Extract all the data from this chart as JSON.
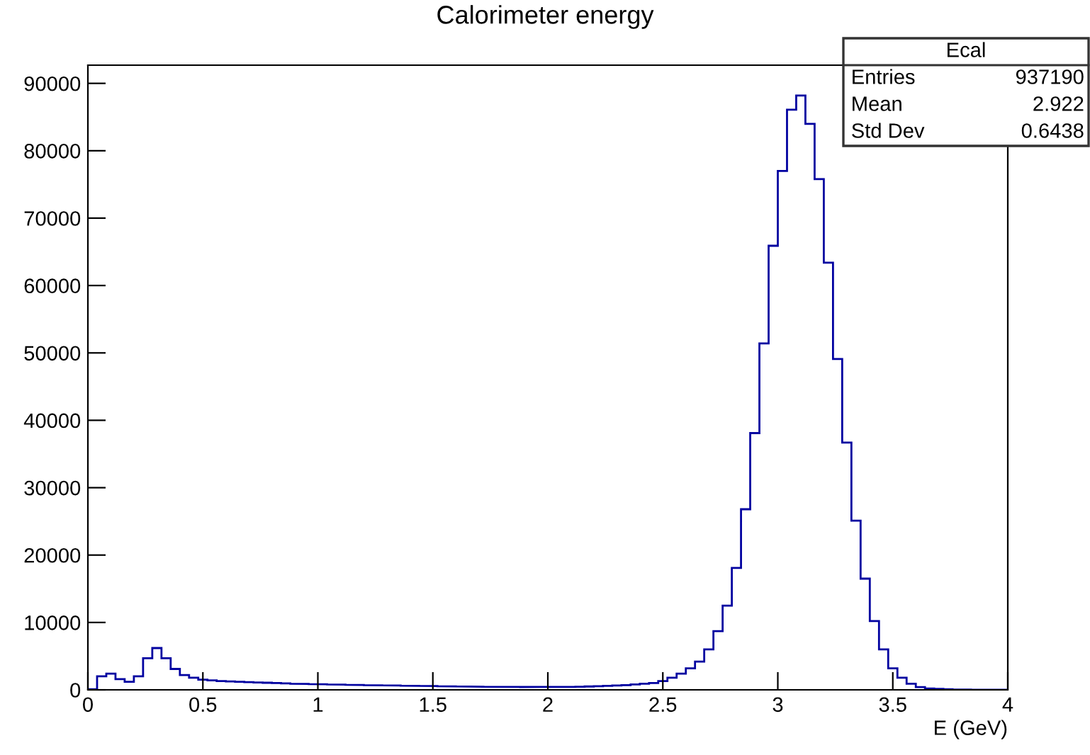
{
  "chart_data": {
    "type": "histogram",
    "title": "Calorimeter energy",
    "xlabel": "E (GeV)",
    "bins": [
      0,
      0.04,
      0.08,
      0.12,
      0.16,
      0.2,
      0.24,
      0.28,
      0.32,
      0.36,
      0.4,
      0.44,
      0.48,
      0.52,
      0.56,
      0.6,
      0.64,
      0.68,
      0.72,
      0.76,
      0.8,
      0.84,
      0.88,
      0.92,
      0.96,
      1,
      1.04,
      1.08,
      1.12,
      1.16,
      1.2,
      1.24,
      1.28,
      1.32,
      1.36,
      1.4,
      1.44,
      1.48,
      1.52,
      1.56,
      1.6,
      1.64,
      1.68,
      1.72,
      1.76,
      1.8,
      1.84,
      1.88,
      1.92,
      1.96,
      2,
      2.04,
      2.08,
      2.12,
      2.16,
      2.2,
      2.24,
      2.28,
      2.32,
      2.36,
      2.4,
      2.44,
      2.48,
      2.52,
      2.56,
      2.6,
      2.64,
      2.68,
      2.72,
      2.76,
      2.8,
      2.84,
      2.88,
      2.92,
      2.96,
      3,
      3.04,
      3.08,
      3.12,
      3.16,
      3.2,
      3.24,
      3.28,
      3.32,
      3.36,
      3.4,
      3.44,
      3.48,
      3.52,
      3.56,
      3.6,
      3.64,
      3.68,
      3.72,
      3.76,
      3.8,
      3.84,
      3.88,
      3.92,
      3.96,
      4
    ],
    "values": [
      100,
      2000,
      2400,
      1600,
      1200,
      2000,
      4700,
      6200,
      4700,
      3100,
      2200,
      1800,
      1500,
      1400,
      1300,
      1250,
      1200,
      1150,
      1100,
      1050,
      1000,
      950,
      900,
      880,
      850,
      820,
      800,
      770,
      740,
      720,
      700,
      680,
      660,
      640,
      620,
      600,
      580,
      560,
      540,
      520,
      500,
      480,
      470,
      460,
      450,
      440,
      430,
      420,
      420,
      420,
      420,
      430,
      440,
      460,
      500,
      550,
      600,
      650,
      700,
      800,
      900,
      1000,
      1300,
      1800,
      2400,
      3200,
      4200,
      6000,
      8700,
      12500,
      18100,
      26800,
      38100,
      51400,
      65900,
      77000,
      86100,
      88200,
      84000,
      75800,
      63400,
      49100,
      36700,
      25100,
      16500,
      10200,
      6000,
      3200,
      1800,
      900,
      400,
      200,
      150,
      100,
      60,
      40,
      20,
      10,
      5,
      0
    ],
    "color": "#0000a0",
    "xlim": [
      0,
      4
    ],
    "xticks": [
      0,
      0.5,
      1,
      1.5,
      2,
      2.5,
      3,
      3.5,
      4
    ],
    "ylim": [
      0,
      92700
    ],
    "yticks": [
      0,
      10000,
      20000,
      30000,
      40000,
      50000,
      60000,
      70000,
      80000,
      90000
    ],
    "annotations": [
      "Ecal",
      "Entries",
      "937190",
      "Mean",
      "2.922",
      "Std Dev",
      "0.6438"
    ]
  }
}
